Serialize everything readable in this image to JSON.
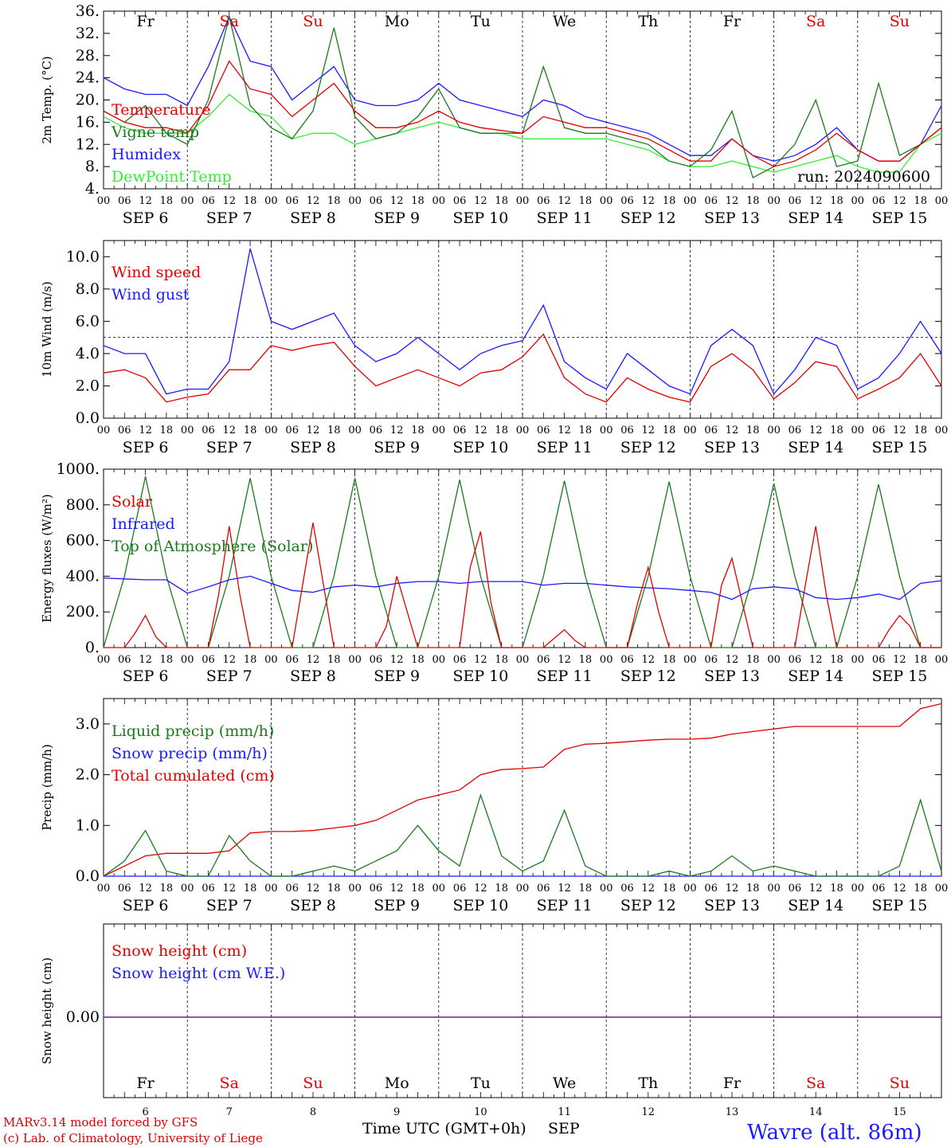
{
  "chart_data": [
    {
      "type": "line",
      "ylabel": "2m Temp. (°C)",
      "ylim": [
        4,
        36
      ],
      "y_ticks": [
        "36.",
        "32.",
        "28.",
        "24.",
        "20.",
        "16.",
        "12.",
        "8.",
        "4."
      ],
      "day_labels": [
        "Fr",
        "Sa",
        "Su",
        "Mo",
        "Tu",
        "We",
        "Th",
        "Fr",
        "Sa",
        "Su"
      ],
      "weekend_color": "#e00000",
      "annotation": "run: 2024090600",
      "series": [
        {
          "name": "Temperature",
          "color": "#e00000",
          "x": [
            0,
            6,
            12,
            18,
            24,
            30,
            36,
            42,
            48,
            54,
            60,
            66,
            72,
            78,
            84,
            90,
            96,
            102,
            108,
            114,
            120,
            126,
            132,
            138,
            144,
            150,
            156,
            162,
            168,
            174,
            180,
            186,
            192,
            198,
            204,
            210,
            216,
            222,
            228,
            234,
            240
          ],
          "y": [
            18,
            16,
            15,
            15,
            14,
            19,
            27,
            22,
            21,
            17,
            20,
            23,
            18,
            15,
            15,
            16,
            18,
            16,
            15,
            14.5,
            14,
            17,
            16,
            15,
            15,
            14,
            13,
            11,
            9,
            9,
            13,
            10,
            8,
            9,
            11,
            14,
            11,
            9,
            9,
            12,
            15
          ]
        },
        {
          "name": "Vigne temp",
          "color": "#1a7a1a",
          "x": [
            0,
            6,
            12,
            18,
            24,
            30,
            36,
            42,
            48,
            54,
            60,
            66,
            72,
            78,
            84,
            90,
            96,
            102,
            108,
            114,
            120,
            126,
            132,
            138,
            144,
            150,
            156,
            162,
            168,
            174,
            180,
            186,
            192,
            198,
            204,
            210,
            216,
            222,
            228,
            234,
            240
          ],
          "y": [
            18,
            16,
            19,
            14,
            12,
            20,
            35,
            19,
            15,
            13,
            18,
            33,
            17,
            13,
            14,
            17,
            22,
            15,
            14,
            14,
            14,
            26,
            15,
            14,
            14,
            13,
            12,
            9,
            8,
            11,
            18,
            6,
            8,
            12,
            20,
            8,
            9,
            23,
            10,
            12,
            15
          ]
        },
        {
          "name": "Humidex",
          "color": "#1a1aff",
          "x": [
            0,
            6,
            12,
            18,
            24,
            30,
            36,
            42,
            48,
            54,
            60,
            66,
            72,
            78,
            84,
            90,
            96,
            102,
            108,
            114,
            120,
            126,
            132,
            138,
            144,
            150,
            156,
            162,
            168,
            174,
            180,
            186,
            192,
            198,
            204,
            210,
            216,
            222,
            228,
            234,
            240
          ],
          "y": [
            24,
            22,
            21,
            21,
            19,
            26,
            35,
            27,
            26,
            20,
            23,
            26,
            20,
            19,
            19,
            20,
            23,
            20,
            19,
            18,
            17,
            20,
            19,
            17,
            16,
            15,
            14,
            12,
            10,
            10,
            13,
            10,
            9,
            10,
            12,
            15,
            11,
            9,
            9,
            12,
            19
          ]
        },
        {
          "name": "DewPoint Temp",
          "color": "#33ee33",
          "x": [
            0,
            6,
            12,
            18,
            24,
            30,
            36,
            42,
            48,
            54,
            60,
            66,
            72,
            78,
            84,
            90,
            96,
            102,
            108,
            114,
            120,
            126,
            132,
            138,
            144,
            150,
            156,
            162,
            168,
            174,
            180,
            186,
            192,
            198,
            204,
            210,
            216,
            222,
            228,
            234,
            240
          ],
          "y": [
            17,
            15,
            14,
            14,
            14,
            17,
            21,
            18,
            17,
            13,
            14,
            14,
            12,
            13,
            14,
            15,
            16,
            15,
            14,
            14,
            13,
            13,
            13,
            13,
            13,
            12,
            11,
            9,
            8,
            8,
            9,
            8,
            7,
            8,
            9,
            10,
            8,
            7,
            7,
            12,
            14
          ]
        }
      ]
    },
    {
      "type": "line",
      "ylabel": "10m Wind (m/s)",
      "ylim": [
        0,
        11
      ],
      "y_ticks": [
        "10.0",
        "8.0",
        "6.0",
        "4.0",
        "2.0",
        "0.0"
      ],
      "ref_line": 5,
      "series": [
        {
          "name": "Wind speed",
          "color": "#e00000",
          "x": [
            0,
            6,
            12,
            18,
            24,
            30,
            36,
            42,
            48,
            54,
            60,
            66,
            72,
            78,
            84,
            90,
            96,
            102,
            108,
            114,
            120,
            126,
            132,
            138,
            144,
            150,
            156,
            162,
            168,
            174,
            180,
            186,
            192,
            198,
            204,
            210,
            216,
            222,
            228,
            234,
            240
          ],
          "y": [
            2.8,
            3.0,
            2.5,
            1.0,
            1.3,
            1.5,
            3.0,
            3.0,
            4.5,
            4.2,
            4.5,
            4.7,
            3.2,
            2.0,
            2.5,
            3.0,
            2.5,
            2.0,
            2.8,
            3.0,
            3.8,
            5.2,
            2.5,
            1.5,
            1.0,
            2.5,
            1.8,
            1.3,
            1.0,
            3.2,
            4.0,
            3.0,
            1.2,
            2.2,
            3.5,
            3.2,
            1.2,
            1.8,
            2.5,
            4.0,
            2.0
          ]
        },
        {
          "name": "Wind gust",
          "color": "#1a1aff",
          "x": [
            0,
            6,
            12,
            18,
            24,
            30,
            36,
            42,
            48,
            54,
            60,
            66,
            72,
            78,
            84,
            90,
            96,
            102,
            108,
            114,
            120,
            126,
            132,
            138,
            144,
            150,
            156,
            162,
            168,
            174,
            180,
            186,
            192,
            198,
            204,
            210,
            216,
            222,
            228,
            234,
            240
          ],
          "y": [
            4.5,
            4.0,
            4.0,
            1.5,
            1.8,
            1.8,
            3.5,
            10.5,
            6.0,
            5.5,
            6.0,
            6.5,
            4.5,
            3.5,
            4.0,
            5.0,
            4.0,
            3.0,
            4.0,
            4.5,
            4.8,
            7.0,
            3.5,
            2.5,
            1.8,
            4.0,
            3.0,
            2.0,
            1.5,
            4.5,
            5.5,
            4.5,
            1.5,
            3.0,
            5.0,
            4.5,
            1.8,
            2.5,
            4.0,
            6.0,
            4.0
          ]
        }
      ]
    },
    {
      "type": "line",
      "ylabel": "Energy fluxes (W/m²)",
      "ylim": [
        0,
        1000
      ],
      "y_ticks": [
        "1000.",
        "800.",
        "600.",
        "400.",
        "200.",
        "0."
      ],
      "series": [
        {
          "name": "Solar",
          "color": "#e00000",
          "x": [
            0,
            6,
            9,
            12,
            15,
            18,
            24,
            30,
            33,
            36,
            39,
            42,
            48,
            54,
            57,
            60,
            63,
            66,
            72,
            78,
            81,
            84,
            87,
            90,
            96,
            102,
            105,
            108,
            111,
            114,
            120,
            126,
            129,
            132,
            135,
            138,
            144,
            150,
            153,
            156,
            159,
            162,
            168,
            174,
            177,
            180,
            183,
            186,
            192,
            198,
            201,
            204,
            207,
            210,
            216,
            222,
            225,
            228,
            231,
            234,
            240
          ],
          "y": [
            0,
            0,
            80,
            180,
            60,
            0,
            0,
            0,
            300,
            680,
            300,
            0,
            0,
            0,
            350,
            700,
            350,
            0,
            0,
            0,
            120,
            400,
            200,
            0,
            0,
            0,
            450,
            650,
            250,
            0,
            0,
            0,
            50,
            100,
            40,
            0,
            0,
            0,
            250,
            450,
            200,
            0,
            0,
            0,
            350,
            500,
            250,
            0,
            0,
            0,
            350,
            680,
            300,
            0,
            0,
            0,
            100,
            180,
            120,
            0,
            0
          ]
        },
        {
          "name": "Infrared",
          "color": "#1a1aff",
          "x": [
            0,
            6,
            12,
            18,
            24,
            30,
            36,
            42,
            48,
            54,
            60,
            66,
            72,
            78,
            84,
            90,
            96,
            102,
            108,
            114,
            120,
            126,
            132,
            138,
            144,
            150,
            156,
            162,
            168,
            174,
            180,
            186,
            192,
            198,
            204,
            210,
            216,
            222,
            228,
            234,
            240
          ],
          "y": [
            390,
            385,
            380,
            380,
            305,
            340,
            380,
            400,
            360,
            320,
            310,
            340,
            350,
            340,
            360,
            370,
            370,
            360,
            370,
            370,
            370,
            350,
            360,
            360,
            350,
            340,
            335,
            330,
            320,
            310,
            270,
            330,
            340,
            330,
            280,
            270,
            280,
            300,
            270,
            360,
            375
          ]
        },
        {
          "name": "Top of Atmosphere (Solar)",
          "color": "#1a7a1a",
          "x": [
            0,
            6,
            12,
            18,
            24,
            30,
            36,
            42,
            48,
            54,
            60,
            66,
            72,
            78,
            84,
            90,
            96,
            102,
            108,
            114,
            120,
            126,
            132,
            138,
            144,
            150,
            156,
            162,
            168,
            174,
            180,
            186,
            192,
            198,
            204,
            210,
            216,
            222,
            228,
            234,
            240
          ],
          "y": [
            0,
            400,
            960,
            400,
            0,
            0,
            400,
            950,
            400,
            0,
            0,
            400,
            950,
            400,
            0,
            0,
            400,
            940,
            400,
            0,
            0,
            400,
            935,
            400,
            0,
            0,
            400,
            930,
            400,
            0,
            0,
            400,
            920,
            400,
            0,
            0,
            400,
            915,
            400,
            0,
            0
          ]
        }
      ]
    },
    {
      "type": "line",
      "ylabel": "Precip (mm/h)",
      "ylim": [
        0,
        3.5
      ],
      "y_ticks": [
        "3.0",
        "2.0",
        "1.0",
        "0.0"
      ],
      "series": [
        {
          "name": "Liquid precip (mm/h)",
          "color": "#1a7a1a",
          "x": [
            0,
            6,
            12,
            18,
            24,
            30,
            36,
            42,
            48,
            54,
            60,
            66,
            72,
            78,
            84,
            90,
            96,
            102,
            108,
            114,
            120,
            126,
            132,
            138,
            144,
            150,
            156,
            162,
            168,
            174,
            180,
            186,
            192,
            198,
            204,
            210,
            216,
            222,
            228,
            234,
            240
          ],
          "y": [
            0,
            0.3,
            0.9,
            0.1,
            0,
            0,
            0.8,
            0.3,
            0,
            0,
            0.1,
            0.2,
            0.1,
            0.3,
            0.5,
            1.0,
            0.5,
            0.2,
            1.6,
            0.4,
            0.1,
            0.3,
            1.3,
            0.2,
            0,
            0,
            0,
            0.1,
            0,
            0.1,
            0.4,
            0.1,
            0.2,
            0.1,
            0,
            0,
            0,
            0,
            0.2,
            1.5,
            0.1
          ]
        },
        {
          "name": "Snow precip (mm/h)",
          "color": "#1a1aff",
          "x": [
            0,
            240
          ],
          "y": [
            0,
            0
          ]
        },
        {
          "name": "Total cumulated (cm)",
          "color": "#e00000",
          "x": [
            0,
            6,
            12,
            18,
            24,
            30,
            36,
            42,
            48,
            54,
            60,
            66,
            72,
            78,
            84,
            90,
            96,
            102,
            108,
            114,
            120,
            126,
            132,
            138,
            144,
            150,
            156,
            162,
            168,
            174,
            180,
            186,
            192,
            198,
            204,
            210,
            216,
            222,
            228,
            234,
            240
          ],
          "y": [
            0,
            0.2,
            0.4,
            0.45,
            0.45,
            0.45,
            0.5,
            0.85,
            0.88,
            0.88,
            0.9,
            0.95,
            1.0,
            1.1,
            1.3,
            1.5,
            1.6,
            1.7,
            2.0,
            2.1,
            2.12,
            2.15,
            2.5,
            2.6,
            2.62,
            2.65,
            2.68,
            2.7,
            2.7,
            2.72,
            2.8,
            2.85,
            2.9,
            2.95,
            2.95,
            2.95,
            2.95,
            2.95,
            2.95,
            3.3,
            3.4
          ]
        }
      ]
    },
    {
      "type": "line",
      "ylabel": "Snow height (cm)",
      "y_ticks": [
        "0.00"
      ],
      "series": [
        {
          "name": "Snow height (cm)",
          "color": "#e00000",
          "x": [
            0,
            240
          ],
          "y": [
            0,
            0
          ]
        },
        {
          "name": "Snow height (cm W.E.)",
          "color": "#1a1aff",
          "x": [
            0,
            240
          ],
          "y": [
            0,
            0
          ]
        }
      ]
    }
  ],
  "x_axis": {
    "hour_ticks": [
      "00",
      "06",
      "12",
      "18"
    ],
    "last_tick": "00",
    "date_labels": [
      "SEP 6",
      "SEP 7",
      "SEP 8",
      "SEP 9",
      "SEP 10",
      "SEP 11",
      "SEP 12",
      "SEP 13",
      "SEP 14",
      "SEP 15"
    ],
    "bottom_day_numbers": [
      "6",
      "7",
      "8",
      "9",
      "10",
      "11",
      "12",
      "13",
      "14",
      "15"
    ],
    "title": "Time UTC (GMT+0h)",
    "month": "SEP"
  },
  "footer": {
    "credit_line1": "MARv3.14 model forced by GFS",
    "credit_line2": "(c) Lab. of Climatology, University of Liege",
    "station": "Wavre (alt. 86m)"
  }
}
